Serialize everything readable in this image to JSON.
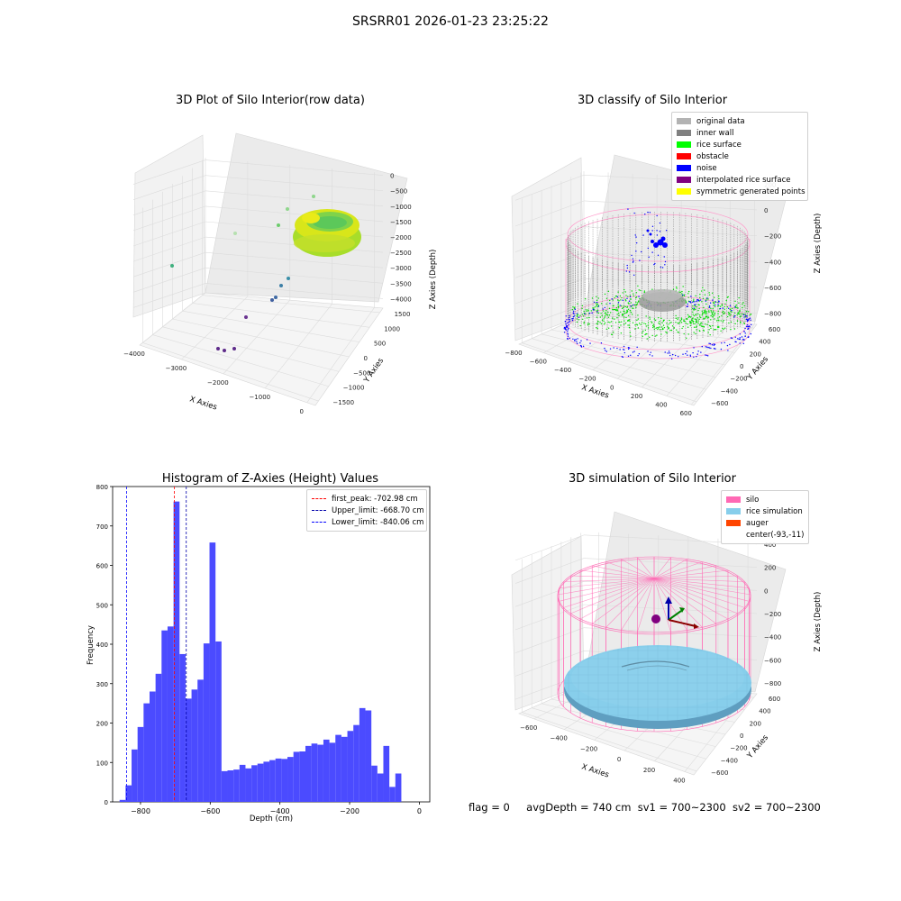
{
  "suptitle": "SRSRR01 2026-01-23 23:25:22",
  "footer": {
    "flag": "flag = 0",
    "avg_depth": "avgDepth = 740 cm",
    "sv1": "sv1 = 700~2300",
    "sv2": "sv2 = 700~2300"
  },
  "colors": {
    "histogram_bar": "#4b4bff",
    "first_peak": "#ff0000",
    "limits": "#0000aa",
    "silo": "#ff69b4",
    "rice_simulation": "#87ceeb",
    "auger": "#ff4500",
    "inner_wall": "#808080",
    "rice_surface": "#00ff00",
    "noise": "#0000ff"
  },
  "chart_data": [
    {
      "type": "scatter",
      "subtype": "3d",
      "title": "3D Plot of Silo Interior(row data)",
      "xlabel": "X Axies",
      "ylabel": "Y Axies",
      "zlabel": "Z Axies (Depth)",
      "xticks": [
        "−4000",
        "−3000",
        "−2000",
        "−1000",
        "0"
      ],
      "yticks": [
        "1500",
        "1000",
        "500",
        "0",
        "−500",
        "−1000",
        "−1500"
      ],
      "zticks": [
        "0",
        "−500",
        "−1000",
        "−1500",
        "−2000",
        "−2500",
        "−3000",
        "−3500",
        "−4000"
      ],
      "xlim": [
        -4000,
        500
      ],
      "ylim": [
        -1500,
        1500
      ],
      "zlim": [
        -4000,
        0
      ]
    },
    {
      "type": "scatter",
      "subtype": "3d",
      "title": "3D classify of Silo Interior",
      "xlabel": "X Axies",
      "ylabel": "Y Axies",
      "zlabel": "Z Axies (Depth)",
      "xticks": [
        "−800",
        "−600",
        "−400",
        "−200",
        "0",
        "200",
        "400",
        "600"
      ],
      "yticks": [
        "600",
        "400",
        "200",
        "0",
        "−200",
        "−400",
        "−600"
      ],
      "zticks": [
        "200",
        "0",
        "−200",
        "−400",
        "−600",
        "−800"
      ],
      "legend": [
        {
          "label": "original data",
          "color": "#b3b3b3"
        },
        {
          "label": "inner wall",
          "color": "#808080"
        },
        {
          "label": "rice surface",
          "color": "#00ff00"
        },
        {
          "label": "obstacle",
          "color": "#ff0000"
        },
        {
          "label": "noise",
          "color": "#0000ff"
        },
        {
          "label": "interpolated rice surface",
          "color": "#800080"
        },
        {
          "label": "symmetric generated points",
          "color": "#ffff00"
        }
      ]
    },
    {
      "type": "bar",
      "subtype": "histogram",
      "title": "Histogram of Z-Axies (Height) Values",
      "xlabel": "Depth (cm)",
      "ylabel": "Frequency",
      "xlim": [
        -880,
        30
      ],
      "ylim": [
        0,
        800
      ],
      "xticks": [
        -800,
        -600,
        -400,
        -200,
        0
      ],
      "xtick_labels": [
        "−800",
        "−600",
        "−400",
        "−200",
        "0"
      ],
      "yticks": [
        0,
        100,
        200,
        300,
        400,
        500,
        600,
        700,
        800
      ],
      "bin_start": -860,
      "bin_width": 17.2,
      "values": [
        5,
        42,
        133,
        190,
        250,
        280,
        325,
        435,
        445,
        762,
        375,
        262,
        285,
        310,
        402,
        658,
        407,
        78,
        80,
        82,
        94,
        85,
        93,
        97,
        102,
        106,
        110,
        109,
        114,
        127,
        128,
        142,
        148,
        145,
        158,
        150,
        170,
        165,
        180,
        195,
        238,
        232,
        92,
        72,
        142,
        38,
        72
      ],
      "vlines": [
        {
          "label": "first_peak: -702.98 cm",
          "x": -702.98,
          "color": "#ff0000"
        },
        {
          "label": "Upper_limit: -668.70 cm",
          "x": -668.7,
          "color": "#0000aa"
        },
        {
          "label": "Lower_limit: -840.06 cm",
          "x": -840.06,
          "color": "#0000ff"
        }
      ]
    },
    {
      "type": "scatter",
      "subtype": "3d",
      "title": "3D simulation of Silo Interior",
      "xlabel": "X Axies",
      "ylabel": "Y Axies",
      "zlabel": "Z Axies (Depth)",
      "xticks": [
        "−600",
        "−400",
        "−200",
        "0",
        "200",
        "400"
      ],
      "yticks": [
        "600",
        "400",
        "200",
        "0",
        "−200",
        "−400",
        "−600"
      ],
      "zticks": [
        "400",
        "200",
        "0",
        "−200",
        "−400",
        "−600",
        "−800"
      ],
      "legend": [
        {
          "label": "silo",
          "color": "#ff69b4"
        },
        {
          "label": "rice simulation",
          "color": "#87ceeb"
        },
        {
          "label": "auger",
          "color": "#ff4500"
        },
        {
          "label": "center(-93,-11)",
          "color": ""
        }
      ]
    }
  ]
}
